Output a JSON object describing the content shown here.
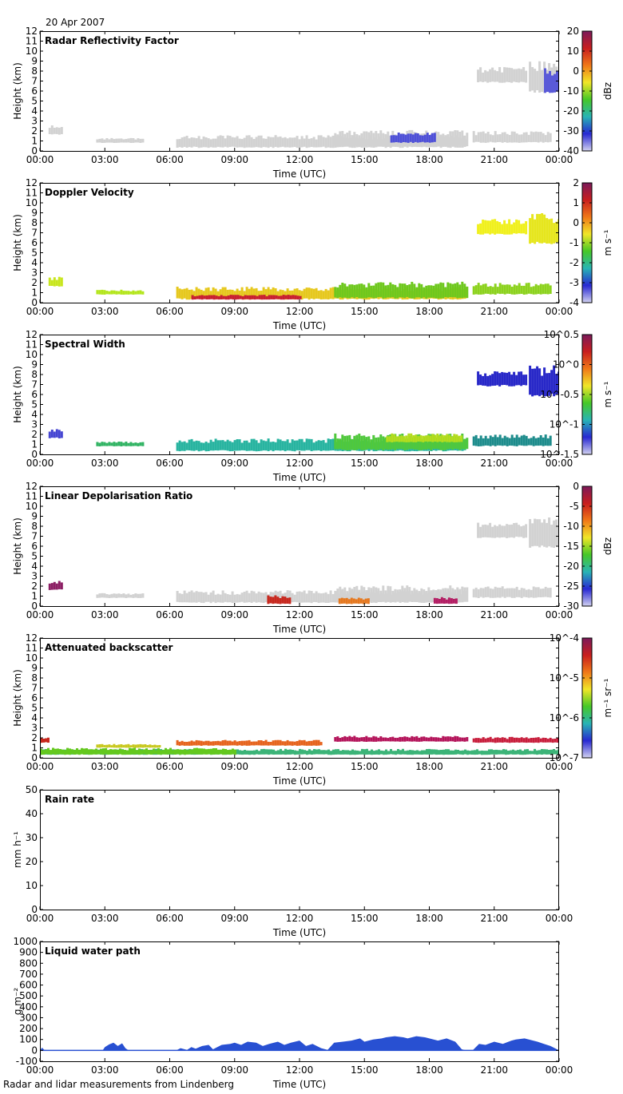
{
  "header": {
    "date": "20 Apr 2007"
  },
  "footer": {
    "text": "Radar and lidar measurements from Lindenberg"
  },
  "chart_data": [
    {
      "type": "heatmap",
      "title": "Radar Reflectivity Factor",
      "xlabel": "Time (UTC)",
      "ylabel": "Height (km)",
      "x_ticks": [
        "00:00",
        "03:00",
        "06:00",
        "09:00",
        "12:00",
        "15:00",
        "18:00",
        "21:00",
        "00:00"
      ],
      "y_ticks": [
        "0",
        "1",
        "2",
        "3",
        "4",
        "5",
        "6",
        "7",
        "8",
        "9",
        "10",
        "11",
        "12"
      ],
      "ylim": [
        0,
        12
      ],
      "colorbar": {
        "label": "dBz",
        "ticks": [
          "20",
          "10",
          "0",
          "-10",
          "-20",
          "-30",
          "-40"
        ],
        "range": [
          -40,
          20
        ]
      },
      "features": [
        {
          "x_start_h": 0.4,
          "x_end_h": 1.0,
          "y_min_km": 1.6,
          "y_max_km": 2.6,
          "color": "#d2d2d2"
        },
        {
          "x_start_h": 2.6,
          "x_end_h": 4.8,
          "y_min_km": 0.8,
          "y_max_km": 1.3,
          "color": "#d2d2d2"
        },
        {
          "x_start_h": 6.3,
          "x_end_h": 19.7,
          "y_min_km": 0.3,
          "y_max_km": 1.6,
          "color": "#d2d2d2"
        },
        {
          "x_start_h": 13.6,
          "x_end_h": 19.7,
          "y_min_km": 0.4,
          "y_max_km": 2.1,
          "color": "#d2d2d2"
        },
        {
          "x_start_h": 20.0,
          "x_end_h": 23.6,
          "y_min_km": 0.8,
          "y_max_km": 2.0,
          "color": "#d2d2d2"
        },
        {
          "x_start_h": 16.2,
          "x_end_h": 18.2,
          "y_min_km": 0.8,
          "y_max_km": 1.9,
          "color": "#4e50d8"
        },
        {
          "x_start_h": 20.2,
          "x_end_h": 22.5,
          "y_min_km": 6.8,
          "y_max_km": 8.4,
          "color": "#d2d2d2"
        },
        {
          "x_start_h": 22.6,
          "x_end_h": 24.0,
          "y_min_km": 5.8,
          "y_max_km": 9.0,
          "color": "#d2d2d2"
        },
        {
          "x_start_h": 23.3,
          "x_end_h": 24.0,
          "y_min_km": 5.8,
          "y_max_km": 8.5,
          "color": "#5a5ad8"
        }
      ]
    },
    {
      "type": "heatmap",
      "title": "Doppler Velocity",
      "xlabel": "Time (UTC)",
      "ylabel": "Height (km)",
      "x_ticks": [
        "00:00",
        "03:00",
        "06:00",
        "09:00",
        "12:00",
        "15:00",
        "18:00",
        "21:00",
        "00:00"
      ],
      "y_ticks": [
        "0",
        "1",
        "2",
        "3",
        "4",
        "5",
        "6",
        "7",
        "8",
        "9",
        "10",
        "11",
        "12"
      ],
      "ylim": [
        0,
        12
      ],
      "colorbar": {
        "label": "m s⁻¹",
        "ticks": [
          "2",
          "1",
          "0",
          "-1",
          "-2",
          "-3",
          "-4"
        ],
        "range": [
          -4,
          2
        ]
      },
      "features": [
        {
          "x_start_h": 0.4,
          "x_end_h": 1.0,
          "y_min_km": 1.6,
          "y_max_km": 2.6,
          "color": "#c8e61e"
        },
        {
          "x_start_h": 2.6,
          "x_end_h": 4.8,
          "y_min_km": 0.8,
          "y_max_km": 1.3,
          "color": "#b4e61e"
        },
        {
          "x_start_h": 6.3,
          "x_end_h": 19.7,
          "y_min_km": 0.3,
          "y_max_km": 1.6,
          "color": "#e6c81e"
        },
        {
          "x_start_h": 13.6,
          "x_end_h": 19.7,
          "y_min_km": 0.4,
          "y_max_km": 2.1,
          "color": "#6ec81e"
        },
        {
          "x_start_h": 20.0,
          "x_end_h": 23.6,
          "y_min_km": 0.8,
          "y_max_km": 2.0,
          "color": "#8cd21e"
        },
        {
          "x_start_h": 7.0,
          "x_end_h": 12.0,
          "y_min_km": 0.3,
          "y_max_km": 0.8,
          "color": "#c81e32"
        },
        {
          "x_start_h": 20.2,
          "x_end_h": 22.5,
          "y_min_km": 6.8,
          "y_max_km": 8.4,
          "color": "#f0f01e"
        },
        {
          "x_start_h": 22.6,
          "x_end_h": 24.0,
          "y_min_km": 5.8,
          "y_max_km": 9.0,
          "color": "#e6e61e"
        }
      ]
    },
    {
      "type": "heatmap",
      "title": "Spectral Width",
      "xlabel": "Time (UTC)",
      "ylabel": "Height (km)",
      "x_ticks": [
        "00:00",
        "03:00",
        "06:00",
        "09:00",
        "12:00",
        "15:00",
        "18:00",
        "21:00",
        "00:00"
      ],
      "y_ticks": [
        "0",
        "1",
        "2",
        "3",
        "4",
        "5",
        "6",
        "7",
        "8",
        "9",
        "10",
        "11",
        "12"
      ],
      "ylim": [
        0,
        12
      ],
      "colorbar": {
        "label": "m s⁻¹",
        "ticks": [
          "10^0.5",
          "10^0",
          "10^-0.5",
          "10^-1",
          "10^-1.5"
        ],
        "range": [
          -1.5,
          0.5
        ]
      },
      "features": [
        {
          "x_start_h": 0.4,
          "x_end_h": 1.0,
          "y_min_km": 1.6,
          "y_max_km": 2.6,
          "color": "#4646d2"
        },
        {
          "x_start_h": 2.6,
          "x_end_h": 4.8,
          "y_min_km": 0.8,
          "y_max_km": 1.3,
          "color": "#32b464"
        },
        {
          "x_start_h": 6.3,
          "x_end_h": 19.7,
          "y_min_km": 0.3,
          "y_max_km": 1.6,
          "color": "#28b4a0"
        },
        {
          "x_start_h": 13.6,
          "x_end_h": 19.7,
          "y_min_km": 0.4,
          "y_max_km": 2.1,
          "color": "#50c83c"
        },
        {
          "x_start_h": 16.0,
          "x_end_h": 19.5,
          "y_min_km": 1.2,
          "y_max_km": 2.1,
          "color": "#b4dc1e"
        },
        {
          "x_start_h": 20.0,
          "x_end_h": 23.6,
          "y_min_km": 0.8,
          "y_max_km": 2.0,
          "color": "#1e8c8c"
        },
        {
          "x_start_h": 20.2,
          "x_end_h": 22.5,
          "y_min_km": 6.8,
          "y_max_km": 8.4,
          "color": "#2828c8"
        },
        {
          "x_start_h": 22.6,
          "x_end_h": 24.0,
          "y_min_km": 5.8,
          "y_max_km": 9.0,
          "color": "#2828c8"
        }
      ]
    },
    {
      "type": "heatmap",
      "title": "Linear Depolarisation Ratio",
      "xlabel": "Time (UTC)",
      "ylabel": "Height (km)",
      "x_ticks": [
        "00:00",
        "03:00",
        "06:00",
        "09:00",
        "12:00",
        "15:00",
        "18:00",
        "21:00",
        "00:00"
      ],
      "y_ticks": [
        "0",
        "1",
        "2",
        "3",
        "4",
        "5",
        "6",
        "7",
        "8",
        "9",
        "10",
        "11",
        "12"
      ],
      "ylim": [
        0,
        12
      ],
      "colorbar": {
        "label": "dBz",
        "ticks": [
          "0",
          "-5",
          "-10",
          "-15",
          "-20",
          "-25",
          "-30"
        ],
        "range": [
          -30,
          0
        ]
      },
      "features": [
        {
          "x_start_h": 0.4,
          "x_end_h": 1.0,
          "y_min_km": 1.6,
          "y_max_km": 2.6,
          "color": "#8c1e64"
        },
        {
          "x_start_h": 2.6,
          "x_end_h": 4.8,
          "y_min_km": 0.8,
          "y_max_km": 1.3,
          "color": "#d2d2d2"
        },
        {
          "x_start_h": 6.3,
          "x_end_h": 19.7,
          "y_min_km": 0.3,
          "y_max_km": 1.6,
          "color": "#d2d2d2"
        },
        {
          "x_start_h": 13.6,
          "x_end_h": 19.7,
          "y_min_km": 0.4,
          "y_max_km": 2.1,
          "color": "#d2d2d2"
        },
        {
          "x_start_h": 20.0,
          "x_end_h": 23.6,
          "y_min_km": 0.8,
          "y_max_km": 2.0,
          "color": "#d2d2d2"
        },
        {
          "x_start_h": 10.5,
          "x_end_h": 11.5,
          "y_min_km": 0.2,
          "y_max_km": 1.1,
          "color": "#c8281e"
        },
        {
          "x_start_h": 13.8,
          "x_end_h": 15.2,
          "y_min_km": 0.2,
          "y_max_km": 0.9,
          "color": "#e6781e"
        },
        {
          "x_start_h": 18.2,
          "x_end_h": 19.2,
          "y_min_km": 0.2,
          "y_max_km": 0.9,
          "color": "#b41e64"
        },
        {
          "x_start_h": 20.2,
          "x_end_h": 22.5,
          "y_min_km": 6.8,
          "y_max_km": 8.4,
          "color": "#d2d2d2"
        },
        {
          "x_start_h": 22.6,
          "x_end_h": 24.0,
          "y_min_km": 5.8,
          "y_max_km": 9.0,
          "color": "#d2d2d2"
        }
      ]
    },
    {
      "type": "heatmap",
      "title": "Attenuated backscatter",
      "xlabel": "Time (UTC)",
      "ylabel": "Height (km)",
      "x_ticks": [
        "00:00",
        "03:00",
        "06:00",
        "09:00",
        "12:00",
        "15:00",
        "18:00",
        "21:00",
        "00:00"
      ],
      "y_ticks": [
        "0",
        "1",
        "2",
        "3",
        "4",
        "5",
        "6",
        "7",
        "8",
        "9",
        "10",
        "11",
        "12"
      ],
      "ylim": [
        0,
        12
      ],
      "colorbar": {
        "label": "m⁻¹ sr⁻¹",
        "ticks": [
          "10^-4",
          "10^-5",
          "10^-6",
          "10^-7"
        ],
        "range": [
          -7,
          -4
        ]
      },
      "features": [
        {
          "x_start_h": 0.0,
          "x_end_h": 24.0,
          "y_min_km": 0.3,
          "y_max_km": 0.9,
          "color": "#3cb478"
        },
        {
          "x_start_h": 0.0,
          "x_end_h": 9.0,
          "y_min_km": 0.3,
          "y_max_km": 1.0,
          "color": "#64c81e"
        },
        {
          "x_start_h": 0.0,
          "x_end_h": 0.4,
          "y_min_km": 1.5,
          "y_max_km": 2.1,
          "color": "#c8281e"
        },
        {
          "x_start_h": 2.6,
          "x_end_h": 5.5,
          "y_min_km": 1.0,
          "y_max_km": 1.4,
          "color": "#c8c81e"
        },
        {
          "x_start_h": 6.3,
          "x_end_h": 13.0,
          "y_min_km": 1.2,
          "y_max_km": 1.8,
          "color": "#e6641e"
        },
        {
          "x_start_h": 13.6,
          "x_end_h": 19.7,
          "y_min_km": 1.6,
          "y_max_km": 2.2,
          "color": "#b4145a"
        },
        {
          "x_start_h": 20.0,
          "x_end_h": 24.0,
          "y_min_km": 1.5,
          "y_max_km": 2.1,
          "color": "#c81e3c"
        }
      ]
    },
    {
      "type": "line",
      "title": "Rain rate",
      "xlabel": "Time (UTC)",
      "ylabel": "mm h⁻¹",
      "x_ticks": [
        "00:00",
        "03:00",
        "06:00",
        "09:00",
        "12:00",
        "15:00",
        "18:00",
        "21:00",
        "00:00"
      ],
      "y_ticks": [
        "0",
        "10",
        "20",
        "30",
        "40",
        "50"
      ],
      "ylim": [
        0,
        50
      ],
      "series": []
    },
    {
      "type": "area",
      "title": "Liquid water path",
      "xlabel": "Time (UTC)",
      "ylabel": "g m⁻²",
      "x_ticks": [
        "00:00",
        "03:00",
        "06:00",
        "09:00",
        "12:00",
        "15:00",
        "18:00",
        "21:00",
        "00:00"
      ],
      "y_ticks": [
        "-100",
        "0",
        "100",
        "200",
        "300",
        "400",
        "500",
        "600",
        "700",
        "800",
        "900",
        "1000"
      ],
      "ylim": [
        -100,
        1000
      ],
      "fill_color": "#2850d2",
      "x_hours": [
        0,
        0.1,
        0.2,
        0.5,
        1,
        2,
        2.9,
        3.0,
        3.2,
        3.4,
        3.6,
        3.8,
        3.95,
        4.1,
        5,
        6.3,
        6.5,
        6.8,
        7,
        7.2,
        7.5,
        7.8,
        8,
        8.4,
        8.8,
        9,
        9.3,
        9.6,
        10,
        10.3,
        10.6,
        11,
        11.3,
        11.6,
        12,
        12.3,
        12.6,
        13,
        13.3,
        13.6,
        14,
        14.4,
        14.8,
        15,
        15.4,
        15.8,
        16,
        16.4,
        16.8,
        17,
        17.4,
        17.8,
        18,
        18.4,
        18.8,
        19.2,
        19.5,
        19.7,
        20,
        20.3,
        20.6,
        21,
        21.4,
        21.8,
        22,
        22.4,
        22.8,
        23,
        23.3,
        23.6,
        23.8,
        24
      ],
      "values": [
        0,
        25,
        5,
        0,
        0,
        0,
        0,
        30,
        55,
        70,
        40,
        65,
        20,
        0,
        0,
        0,
        20,
        5,
        30,
        15,
        40,
        50,
        10,
        50,
        60,
        70,
        50,
        80,
        70,
        40,
        60,
        80,
        50,
        70,
        90,
        40,
        60,
        20,
        5,
        70,
        80,
        90,
        110,
        80,
        100,
        110,
        120,
        130,
        120,
        110,
        130,
        120,
        110,
        90,
        110,
        80,
        10,
        0,
        0,
        60,
        50,
        80,
        60,
        90,
        100,
        110,
        90,
        80,
        60,
        40,
        20,
        0
      ]
    }
  ]
}
